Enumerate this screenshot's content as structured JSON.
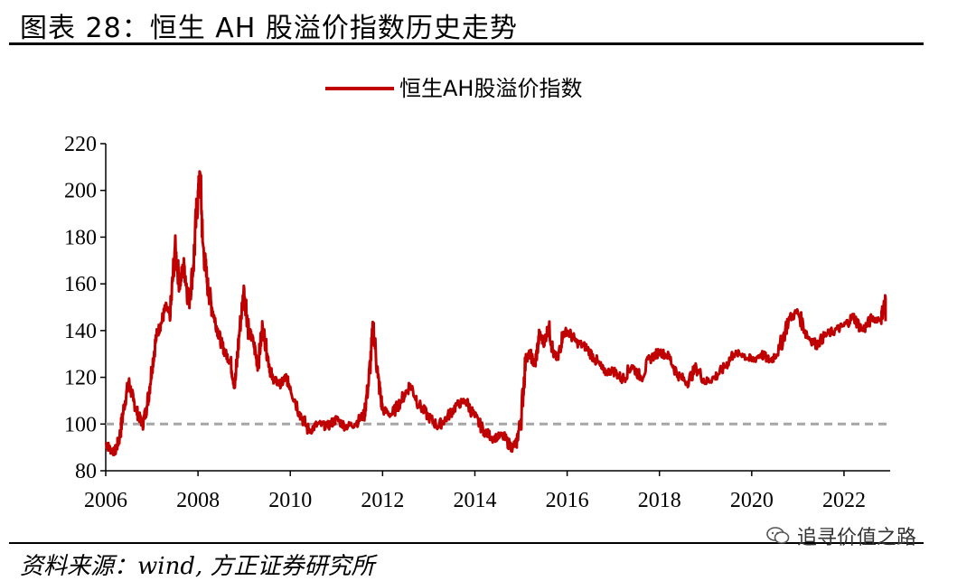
{
  "figure": {
    "title": "图表 28：恒生 AH 股溢价指数历史走势",
    "source": "资料来源：wind, 方正证券研究所",
    "watermark": "追寻价值之路"
  },
  "chart_data": {
    "type": "line",
    "legend": {
      "position": "top-center",
      "label": "恒生AH股溢价指数"
    },
    "ylim": [
      80,
      220
    ],
    "yticks": [
      80,
      100,
      120,
      140,
      160,
      180,
      200,
      220
    ],
    "xlim": [
      2006,
      2023.0
    ],
    "xticks": [
      "2006",
      "2008",
      "2010",
      "2012",
      "2014",
      "2016",
      "2018",
      "2020",
      "2022"
    ],
    "grid": false,
    "reference_line": {
      "y": 100,
      "style": "dashed",
      "color": "#a6a6a6"
    },
    "series": [
      {
        "name": "恒生AH股溢价指数",
        "color": "#c00000",
        "x": [
          2006.0,
          2006.1,
          2006.2,
          2006.3,
          2006.4,
          2006.5,
          2006.6,
          2006.7,
          2006.8,
          2006.9,
          2007.0,
          2007.1,
          2007.2,
          2007.3,
          2007.4,
          2007.5,
          2007.6,
          2007.7,
          2007.8,
          2007.9,
          2008.0,
          2008.05,
          2008.1,
          2008.2,
          2008.3,
          2008.4,
          2008.5,
          2008.6,
          2008.7,
          2008.8,
          2008.9,
          2009.0,
          2009.1,
          2009.2,
          2009.3,
          2009.4,
          2009.5,
          2009.6,
          2009.7,
          2009.8,
          2009.9,
          2010.0,
          2010.2,
          2010.4,
          2010.6,
          2010.8,
          2011.0,
          2011.2,
          2011.4,
          2011.6,
          2011.7,
          2011.8,
          2011.9,
          2012.0,
          2012.2,
          2012.4,
          2012.6,
          2012.8,
          2013.0,
          2013.2,
          2013.4,
          2013.6,
          2013.8,
          2014.0,
          2014.2,
          2014.4,
          2014.6,
          2014.8,
          2014.9,
          2015.0,
          2015.1,
          2015.2,
          2015.3,
          2015.4,
          2015.5,
          2015.6,
          2015.7,
          2015.8,
          2015.9,
          2016.0,
          2016.2,
          2016.4,
          2016.6,
          2016.8,
          2017.0,
          2017.2,
          2017.4,
          2017.6,
          2017.8,
          2018.0,
          2018.2,
          2018.4,
          2018.6,
          2018.8,
          2019.0,
          2019.2,
          2019.4,
          2019.6,
          2019.8,
          2020.0,
          2020.2,
          2020.4,
          2020.6,
          2020.8,
          2021.0,
          2021.2,
          2021.4,
          2021.6,
          2021.8,
          2022.0,
          2022.2,
          2022.4,
          2022.6,
          2022.8,
          2022.9
        ],
        "values": [
          92,
          89,
          88,
          94,
          108,
          118,
          110,
          104,
          100,
          108,
          124,
          138,
          143,
          150,
          146,
          176,
          160,
          168,
          152,
          168,
          200,
          207,
          178,
          160,
          150,
          142,
          135,
          130,
          127,
          116,
          140,
          158,
          140,
          135,
          125,
          142,
          130,
          120,
          118,
          117,
          120,
          116,
          105,
          97,
          100,
          99,
          102,
          99,
          100,
          104,
          118,
          142,
          120,
          106,
          104,
          110,
          117,
          108,
          103,
          99,
          103,
          108,
          110,
          103,
          97,
          94,
          95,
          90,
          92,
          102,
          128,
          130,
          125,
          138,
          135,
          142,
          130,
          128,
          138,
          140,
          135,
          133,
          128,
          122,
          123,
          119,
          125,
          120,
          128,
          131,
          129,
          121,
          118,
          124,
          118,
          120,
          124,
          130,
          130,
          127,
          130,
          127,
          132,
          145,
          148,
          138,
          134,
          138,
          140,
          142,
          146,
          140,
          145,
          145,
          154
        ]
      }
    ]
  }
}
